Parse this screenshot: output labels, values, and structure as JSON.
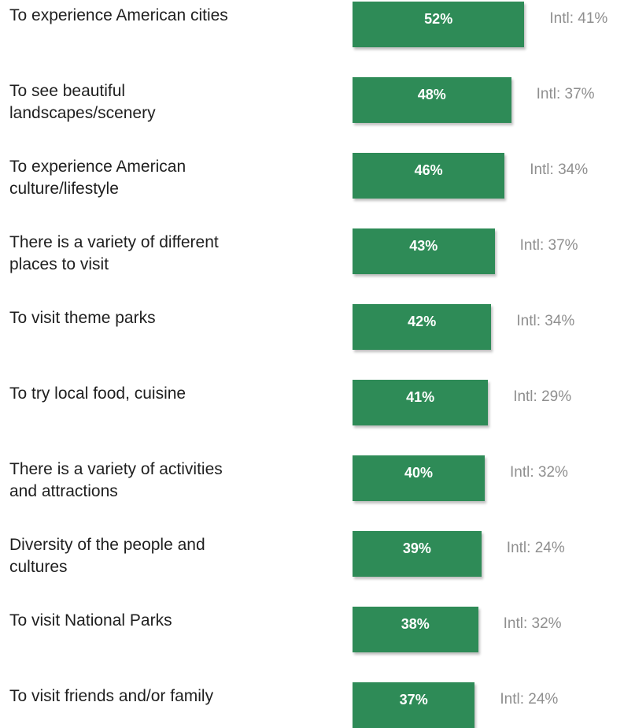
{
  "chart_data": {
    "type": "bar",
    "orientation": "horizontal",
    "bar_color": "#2e8b57",
    "intl_color": "#8f8f8f",
    "categories": [
      "To experience American cities",
      "To see beautiful\nlandscapes/scenery",
      "To experience American\nculture/lifestyle",
      "There is a variety of different\nplaces to visit",
      "To visit theme parks",
      "To try local food, cuisine",
      "There is a variety of activities\nand attractions",
      "Diversity of the people and\ncultures",
      "To visit National Parks",
      "To visit friends and/or family"
    ],
    "values": [
      52,
      48,
      46,
      43,
      42,
      41,
      40,
      39,
      38,
      37
    ],
    "value_labels": [
      "52%",
      "48%",
      "46%",
      "43%",
      "42%",
      "41%",
      "40%",
      "39%",
      "38%",
      "37%"
    ],
    "intl_labels": [
      "Intl: 41%",
      "Intl: 37%",
      "Intl: 34%",
      "Intl: 37%",
      "Intl: 34%",
      "Intl: 29%",
      "Intl: 32%",
      "Intl: 24%",
      "Intl: 32%",
      "Intl: 24%"
    ]
  }
}
